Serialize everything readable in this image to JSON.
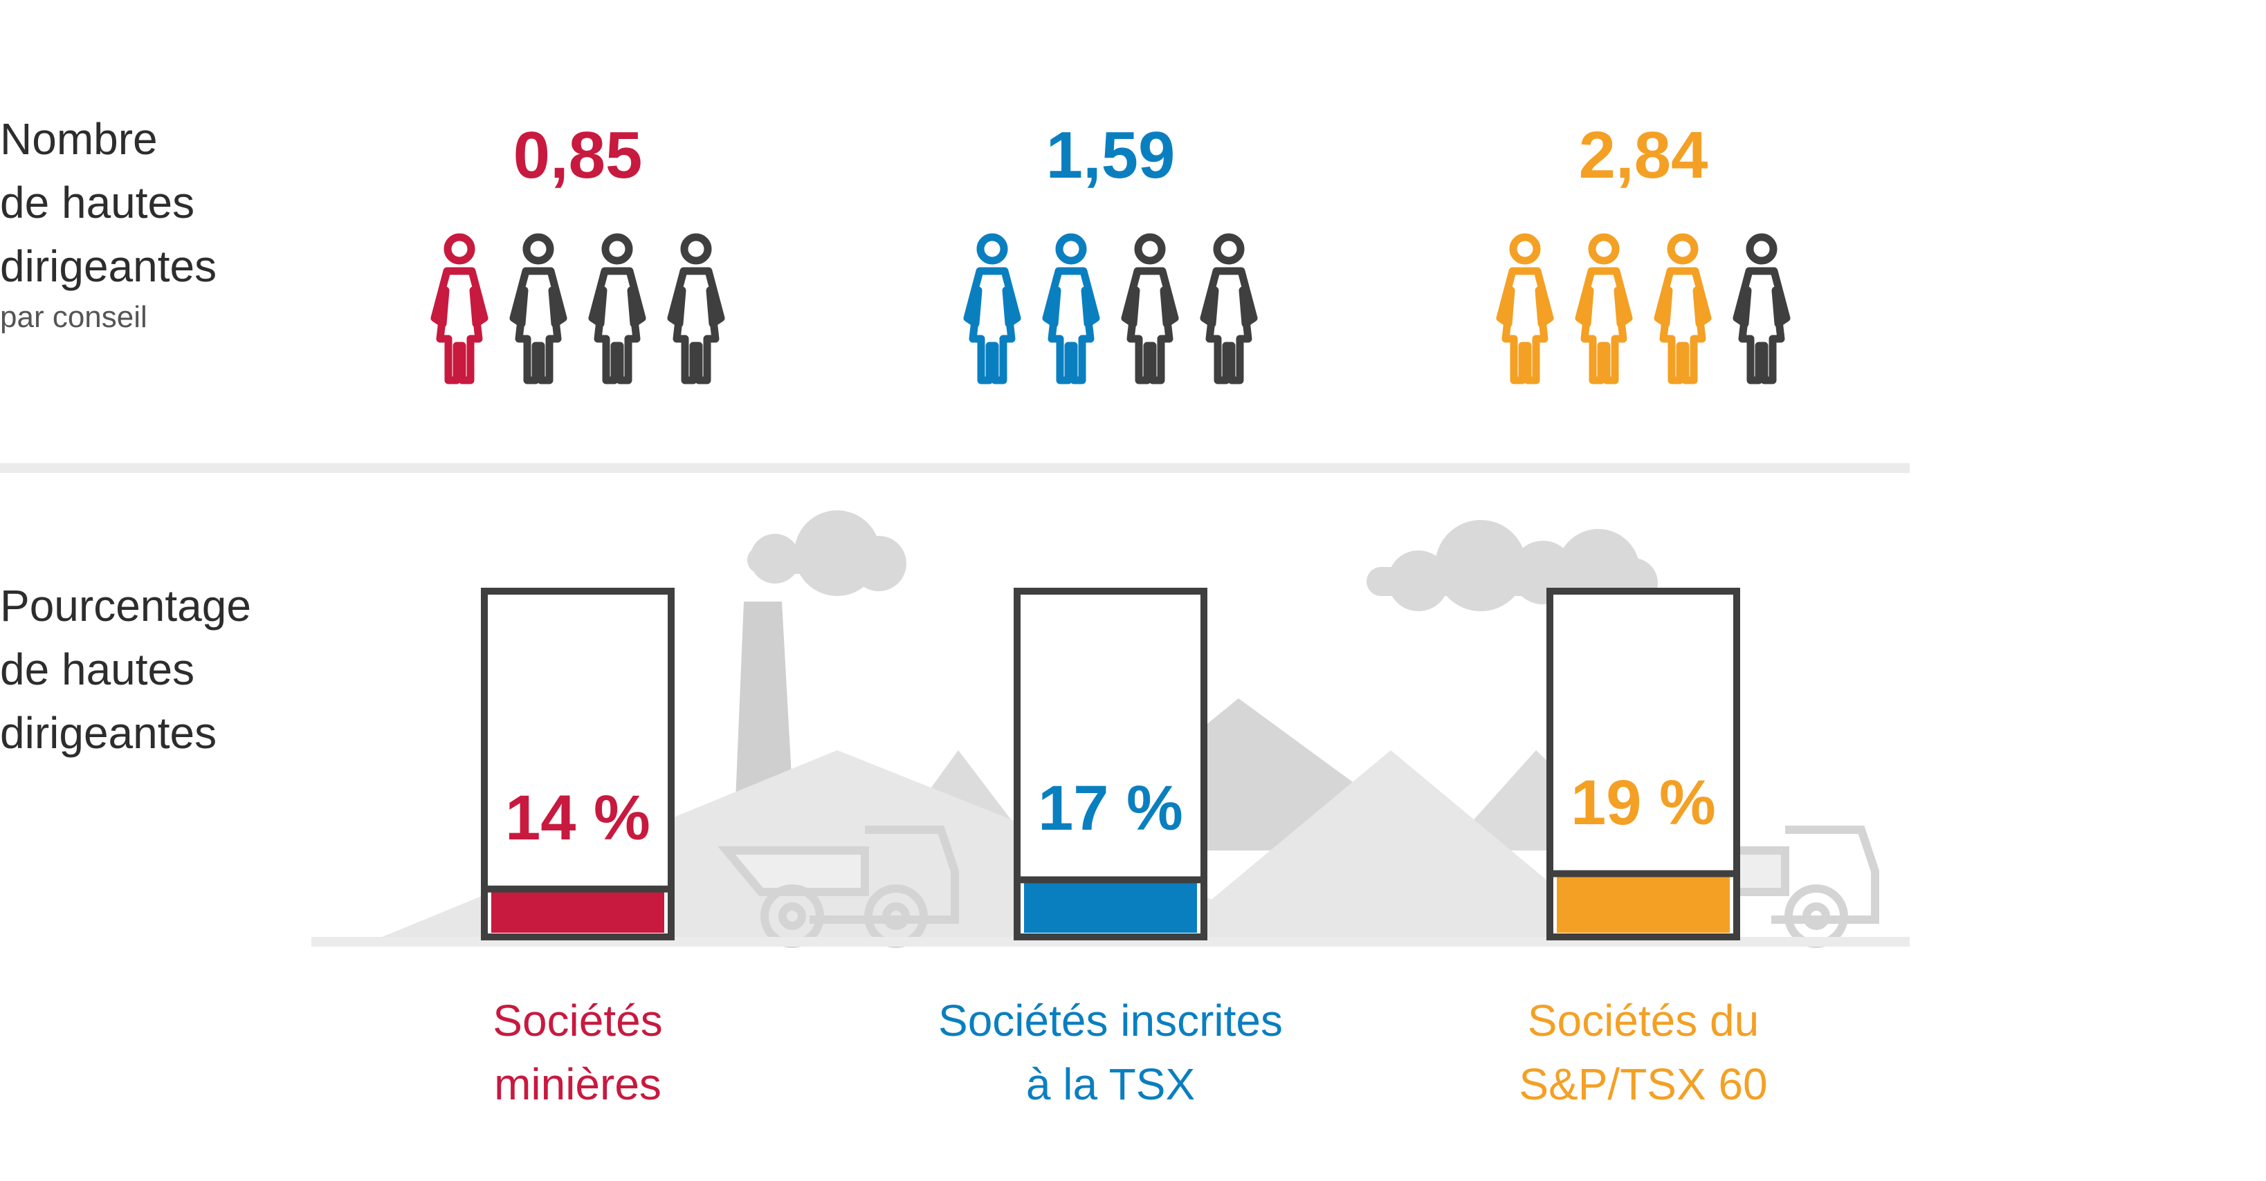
{
  "labels": {
    "row1_main": "Nombre\nde hautes\ndirigeantes",
    "row1_sub": "par conseil",
    "row2_main": "Pourcentage\nde hautes\ndirigeantes"
  },
  "chart_data": {
    "type": "bar",
    "categories": [
      "Sociétés\nminières",
      "Sociétés inscrites\nà la TSX",
      "Sociétés du\nS&P/TSX 60"
    ],
    "count_per_board": {
      "values": [
        0.85,
        1.59,
        2.84
      ],
      "labels": [
        "0,85",
        "1,59",
        "2,84"
      ],
      "icons_per_group": 4
    },
    "percentage": {
      "values": [
        14,
        17,
        19
      ],
      "labels": [
        "14 %",
        "17 %",
        "19 %"
      ],
      "ylim": [
        0,
        100
      ]
    },
    "colors": [
      "#c8193f",
      "#0a7fc0",
      "#f4a024"
    ],
    "icon_color_inactive": "#3f3f3f",
    "background_art": [
      "factory-chimney",
      "mountains",
      "clouds",
      "mining-truck"
    ]
  }
}
